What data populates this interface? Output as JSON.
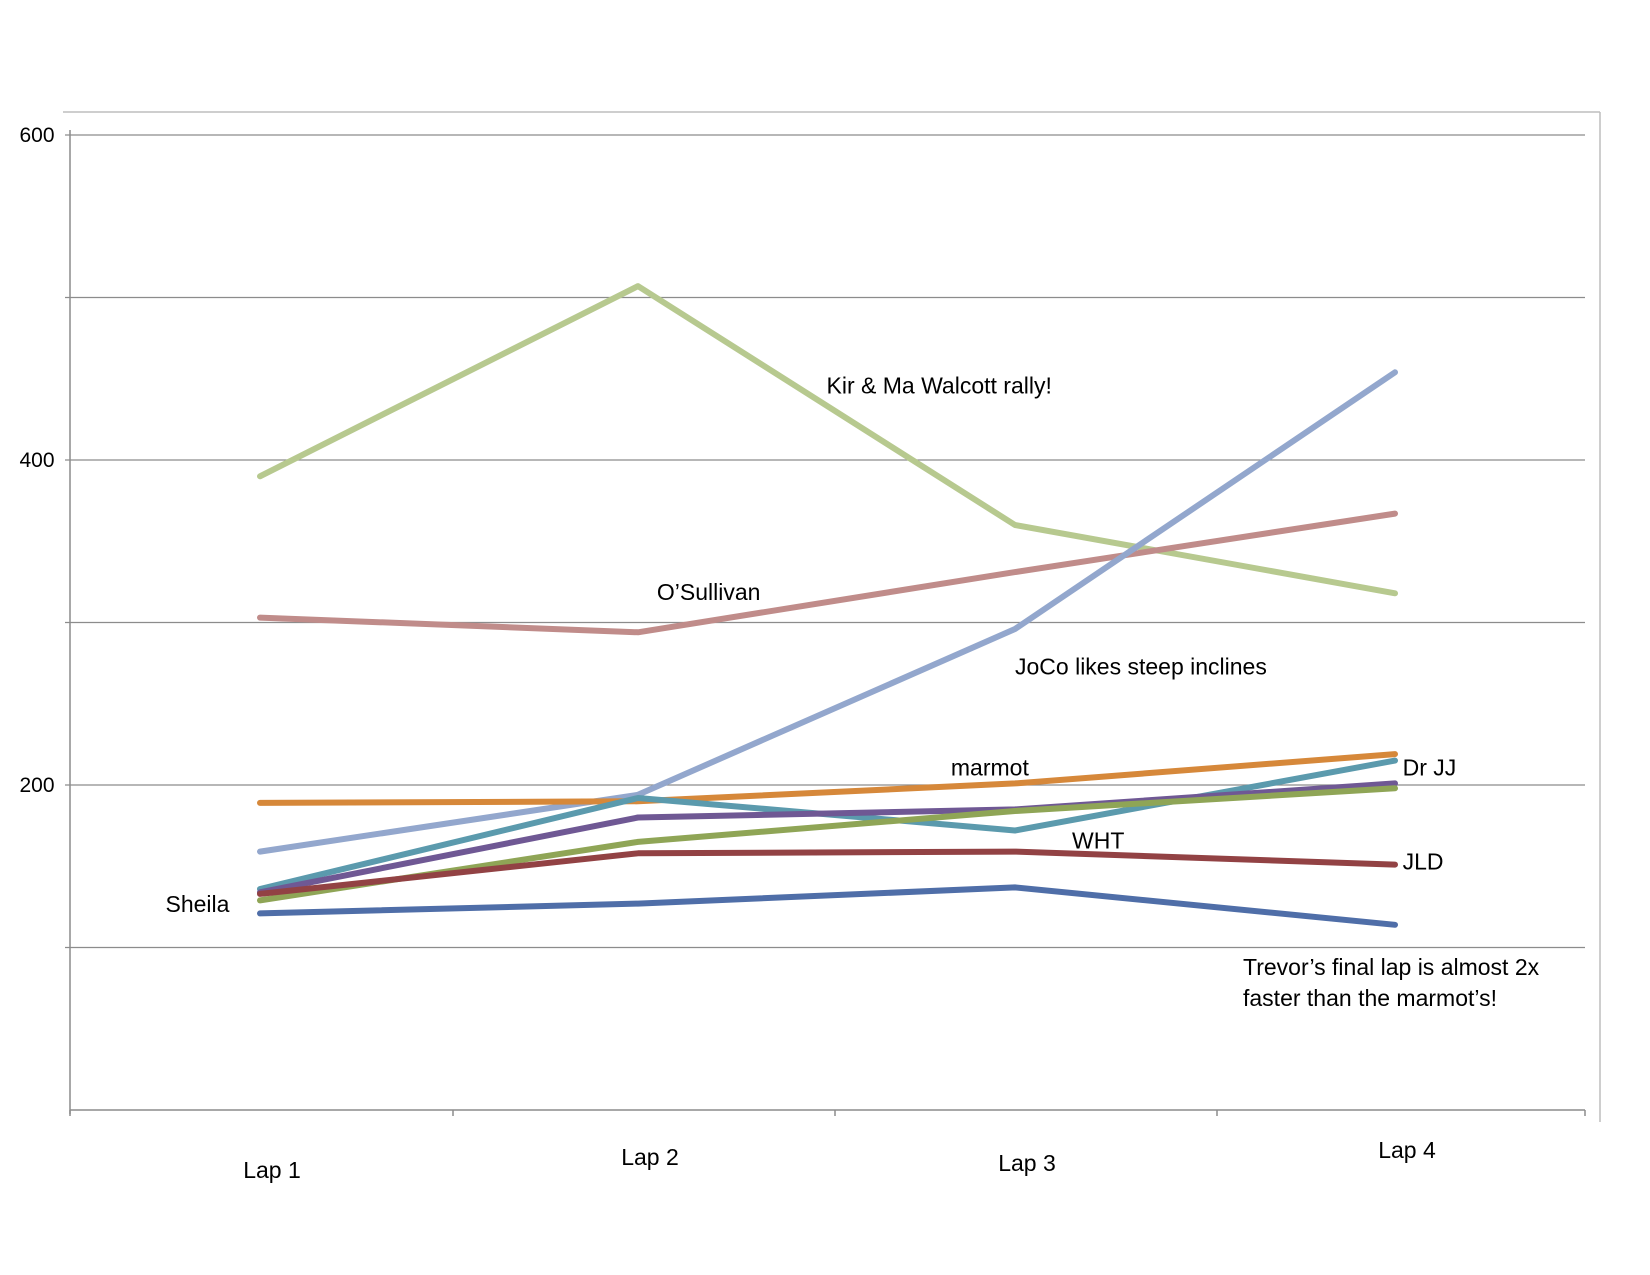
{
  "chart_data": {
    "type": "line",
    "title": "",
    "xlabel": "",
    "ylabel": "",
    "categories": [
      "Lap 1",
      "Lap 2",
      "Lap 3",
      "Lap 4"
    ],
    "y_ticks": [
      {
        "value": 600,
        "label": "600"
      },
      {
        "value": 500,
        "label": ""
      },
      {
        "value": 400,
        "label": "400"
      },
      {
        "value": 300,
        "label": ""
      },
      {
        "value": 200,
        "label": "200"
      },
      {
        "value": 100,
        "label": ""
      },
      {
        "value": 0,
        "label": ""
      }
    ],
    "ylim": [
      0,
      600
    ],
    "grid": true,
    "legend": "none",
    "series": [
      {
        "color": "#b7c98f",
        "values": [
          390,
          507,
          360,
          318
        ]
      },
      {
        "color": "#c08c8a",
        "values": [
          303,
          294,
          331,
          367
        ]
      },
      {
        "color": "#93a7cd",
        "values": [
          159,
          194,
          296,
          454
        ]
      },
      {
        "color": "#d6883a",
        "values": [
          189,
          190,
          201,
          219
        ]
      },
      {
        "color": "#5b9aad",
        "values": [
          136,
          192,
          172,
          215
        ]
      },
      {
        "color": "#6f5894",
        "values": [
          134,
          180,
          185,
          201
        ]
      },
      {
        "color": "#8fa556",
        "values": [
          129,
          165,
          184,
          198
        ]
      },
      {
        "color": "#924244",
        "values": [
          133,
          158,
          159,
          151
        ]
      },
      {
        "color": "#4f6ea8",
        "values": [
          121,
          127,
          137,
          114
        ]
      }
    ],
    "annotations": [
      {
        "text": "Kir & Ma Walcott rally!",
        "value": 441,
        "category": 1.5
      },
      {
        "text": "O’Sullivan",
        "value": 314,
        "category": 1.05
      },
      {
        "text": "JoCo likes steep inclines",
        "value": 268,
        "category": 2.0
      },
      {
        "text": "marmot",
        "value": 206,
        "category": 1.83
      },
      {
        "text": "Dr JJ",
        "value": 206,
        "category": 3.02
      },
      {
        "text": "WHT",
        "value": 161,
        "category": 2.15
      },
      {
        "text": "JLD",
        "value": 148,
        "category": 3.02
      },
      {
        "text": "Sheila",
        "value": 122,
        "category": -0.25
      },
      {
        "text": "Trevor’s final lap is almost 2x",
        "value": 83,
        "category": 2.6
      },
      {
        "text": "faster than the marmot’s!",
        "value": 64,
        "category": 2.6
      }
    ]
  }
}
